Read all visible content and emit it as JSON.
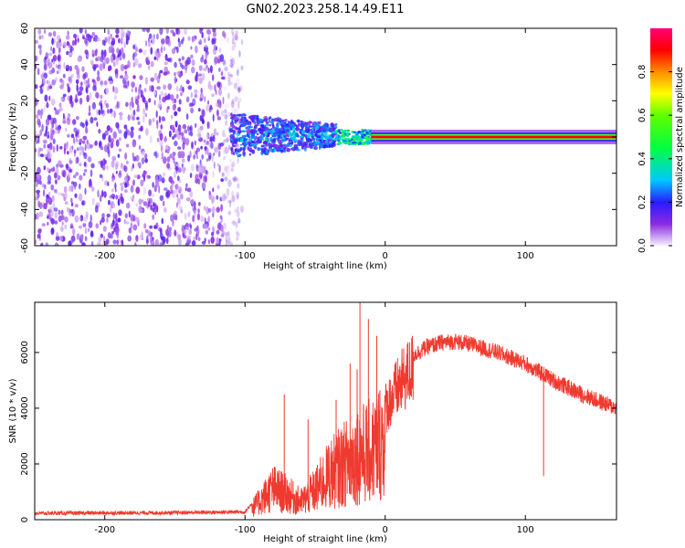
{
  "title": "GN02.2023.258.14.49.E11",
  "chart_data": [
    {
      "type": "heatmap",
      "name": "spectrogram",
      "title": "GN02.2023.258.14.49.E11",
      "xlabel": "Height of straight line (km)",
      "ylabel": "Frequency (Hz)",
      "xlim": [
        -250,
        165
      ],
      "ylim": [
        -60,
        60
      ],
      "xticks": [
        -200,
        -100,
        0,
        100
      ],
      "yticks": [
        -60,
        -40,
        -20,
        0,
        20,
        40,
        60
      ],
      "colorbar": {
        "label": "Normalized spectral amplitude",
        "range": [
          0.0,
          1.0
        ],
        "ticks": [
          0.0,
          0.2,
          0.4,
          0.6,
          0.8
        ]
      },
      "regions": [
        {
          "x_range": [
            -250,
            -110
          ],
          "freq_range": [
            -60,
            60
          ],
          "amplitude": 0.1,
          "desc": "broadband noise"
        },
        {
          "x_range": [
            -110,
            -35
          ],
          "freq_range": [
            -10,
            12
          ],
          "amplitude": 0.25
        },
        {
          "x_range": [
            -35,
            -10
          ],
          "freq_range": [
            -4,
            4
          ],
          "amplitude": 0.4
        },
        {
          "x_range": [
            -10,
            165
          ],
          "freq_range": [
            -2,
            2
          ],
          "amplitude": 0.9,
          "desc": "narrow line at 0 Hz"
        }
      ]
    },
    {
      "type": "line",
      "name": "snr",
      "xlabel": "Height of straight line (km)",
      "ylabel": "SNR (10 * v/v)",
      "xlim": [
        -250,
        165
      ],
      "ylim": [
        0,
        7800
      ],
      "xticks": [
        -200,
        -100,
        0,
        100
      ],
      "yticks": [
        0,
        2000,
        4000,
        6000
      ],
      "color": "#f03a30",
      "envelope_x": [
        -250,
        -200,
        -150,
        -100,
        -90,
        -80,
        -70,
        -60,
        -50,
        -40,
        -30,
        -20,
        -10,
        0,
        10,
        20,
        30,
        40,
        50,
        60,
        70,
        80,
        90,
        100,
        110,
        120,
        130,
        140,
        150,
        165
      ],
      "envelope_y": [
        230,
        240,
        250,
        280,
        900,
        1600,
        1300,
        900,
        1500,
        2300,
        2800,
        3300,
        3500,
        4300,
        5200,
        5900,
        6200,
        6350,
        6400,
        6300,
        6150,
        6000,
        5800,
        5600,
        5300,
        5000,
        4750,
        4500,
        4300,
        4000
      ],
      "spikes": [
        {
          "x": -72,
          "y": 4500
        },
        {
          "x": -55,
          "y": 3600
        },
        {
          "x": -35,
          "y": 4300
        },
        {
          "x": -25,
          "y": 5600
        },
        {
          "x": -20,
          "y": 5400
        },
        {
          "x": -18,
          "y": 7800
        },
        {
          "x": -12,
          "y": 7200
        },
        {
          "x": -6,
          "y": 6600
        },
        {
          "x": 113,
          "y": 5200
        }
      ]
    }
  ]
}
